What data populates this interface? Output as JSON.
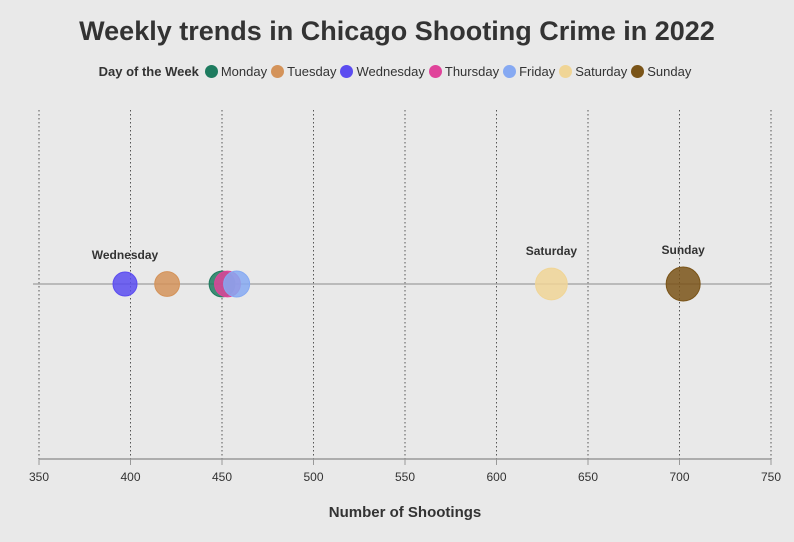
{
  "chart_data": {
    "type": "scatter",
    "title": "Weekly trends in Chicago Shooting Crime in 2022",
    "xlabel": "Number of Shootings",
    "ylabel": "",
    "xlim": [
      350,
      750
    ],
    "xticks": [
      "350",
      "400",
      "450",
      "500",
      "550",
      "600",
      "650",
      "700",
      "750"
    ],
    "grid": "vertical dotted",
    "legend": {
      "title": "Day of the Week",
      "placement": "top"
    },
    "series": [
      {
        "name": "Monday",
        "value": 450,
        "color": "#1e7b5f"
      },
      {
        "name": "Tuesday",
        "value": 420,
        "color": "#d4935a"
      },
      {
        "name": "Wednesday",
        "value": 397,
        "color": "#5b4cf0"
      },
      {
        "name": "Thursday",
        "value": 453,
        "color": "#e0439a"
      },
      {
        "name": "Friday",
        "value": 458,
        "color": "#86a9f2"
      },
      {
        "name": "Saturday",
        "value": 630,
        "color": "#f0d596"
      },
      {
        "name": "Sunday",
        "value": 702,
        "color": "#7a5418"
      }
    ],
    "annotations": [
      {
        "text": "Wednesday",
        "series": "Wednesday"
      },
      {
        "text": "Saturday",
        "series": "Saturday"
      },
      {
        "text": "Sunday",
        "series": "Sunday"
      }
    ]
  }
}
